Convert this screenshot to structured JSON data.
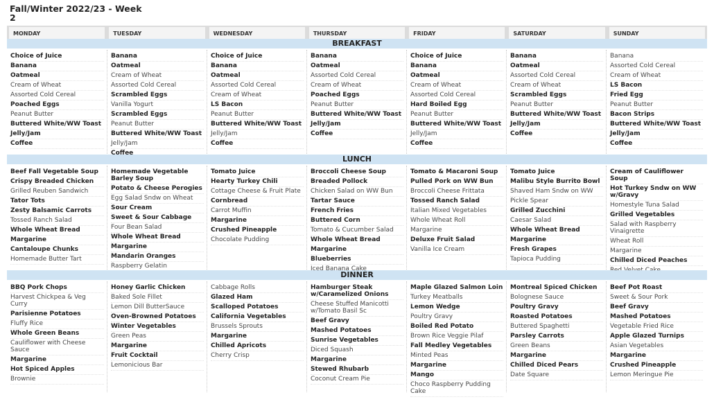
{
  "title": "Fall/Winter 2022/23 - Week 2",
  "days": [
    "MONDAY",
    "TUESDAY",
    "WEDNESDAY",
    "THURSDAY",
    "FRIDAY",
    "SATURDAY",
    "SUNDAY"
  ],
  "colors": {
    "band": "#cfe3f3",
    "header": "#dcdcdc"
  },
  "meals": [
    {
      "name": "BREAKFAST",
      "columns": [
        [
          {
            "t": "Choice of Juice",
            "b": 1
          },
          {
            "t": "Banana",
            "b": 1
          },
          {
            "t": "Oatmeal",
            "b": 1
          },
          {
            "t": "Cream of Wheat"
          },
          {
            "t": "Assorted Cold Cereal"
          },
          {
            "t": "Poached Eggs",
            "b": 1
          },
          {
            "t": "Peanut Butter"
          },
          {
            "t": "Buttered White/WW Toast",
            "b": 1
          },
          {
            "t": "Jelly/Jam",
            "b": 1
          },
          {
            "t": "Coffee",
            "b": 1
          }
        ],
        [
          {
            "t": "Banana",
            "b": 1
          },
          {
            "t": "Oatmeal",
            "b": 1
          },
          {
            "t": "Cream of Wheat"
          },
          {
            "t": "Assorted Cold Cereal"
          },
          {
            "t": "Scrambled Eggs",
            "b": 1
          },
          {
            "t": "Vanilla Yogurt"
          },
          {
            "t": "Scrambled Eggs",
            "b": 1
          },
          {
            "t": "Peanut Butter"
          },
          {
            "t": "Buttered White/WW Toast",
            "b": 1
          },
          {
            "t": "Jelly/Jam"
          },
          {
            "t": "Coffee",
            "b": 1
          }
        ],
        [
          {
            "t": "Choice of Juice",
            "b": 1
          },
          {
            "t": "Banana",
            "b": 1
          },
          {
            "t": "Oatmeal",
            "b": 1
          },
          {
            "t": "Assorted Cold Cereal"
          },
          {
            "t": "Cream of Wheat"
          },
          {
            "t": "LS Bacon",
            "b": 1
          },
          {
            "t": "Peanut Butter"
          },
          {
            "t": "Buttered White/WW Toast",
            "b": 1
          },
          {
            "t": "Jelly/Jam"
          },
          {
            "t": "Coffee",
            "b": 1
          }
        ],
        [
          {
            "t": "Banana",
            "b": 1
          },
          {
            "t": "Oatmeal",
            "b": 1
          },
          {
            "t": "Assorted Cold Cereal"
          },
          {
            "t": "Cream of Wheat"
          },
          {
            "t": "Poached Eggs",
            "b": 1
          },
          {
            "t": "Peanut Butter"
          },
          {
            "t": "Buttered White/WW Toast",
            "b": 1
          },
          {
            "t": "Jelly/Jam",
            "b": 1
          },
          {
            "t": "Coffee",
            "b": 1
          }
        ],
        [
          {
            "t": "Choice of Juice",
            "b": 1
          },
          {
            "t": "Banana",
            "b": 1
          },
          {
            "t": "Oatmeal",
            "b": 1
          },
          {
            "t": "Cream of Wheat"
          },
          {
            "t": "Assorted Cold Cereal"
          },
          {
            "t": "Hard Boiled Egg",
            "b": 1
          },
          {
            "t": "Peanut Butter"
          },
          {
            "t": "Buttered White/WW Toast",
            "b": 1
          },
          {
            "t": "Jelly/Jam"
          },
          {
            "t": "Coffee",
            "b": 1
          }
        ],
        [
          {
            "t": "Banana",
            "b": 1
          },
          {
            "t": "Oatmeal",
            "b": 1
          },
          {
            "t": "Assorted Cold Cereal"
          },
          {
            "t": "Cream of Wheat"
          },
          {
            "t": "Scrambled Eggs",
            "b": 1
          },
          {
            "t": "Peanut Butter"
          },
          {
            "t": "Buttered White/WW Toast",
            "b": 1
          },
          {
            "t": "Jelly/Jam",
            "b": 1
          },
          {
            "t": "Coffee",
            "b": 1
          }
        ],
        [
          {
            "t": "Banana"
          },
          {
            "t": "Assorted Cold Cereal"
          },
          {
            "t": "Cream of Wheat"
          },
          {
            "t": "LS Bacon",
            "b": 1
          },
          {
            "t": "Fried Egg",
            "b": 1
          },
          {
            "t": "Peanut Butter"
          },
          {
            "t": "Bacon Strips",
            "b": 1
          },
          {
            "t": "Buttered White/WW Toast",
            "b": 1
          },
          {
            "t": "Jelly/Jam",
            "b": 1
          },
          {
            "t": "Coffee",
            "b": 1
          }
        ]
      ]
    },
    {
      "name": "LUNCH",
      "columns": [
        [
          {
            "t": "Beef Fall Vegetable Soup",
            "b": 1
          },
          {
            "t": "Crispy Breaded Chicken",
            "b": 1
          },
          {
            "t": "Grilled Reuben Sandwich"
          },
          {
            "t": "Tator Tots",
            "b": 1
          },
          {
            "t": "Zesty Balsamic Carrots",
            "b": 1
          },
          {
            "t": "Tossed Ranch Salad"
          },
          {
            "t": "Whole Wheat Bread",
            "b": 1
          },
          {
            "t": "Margarine",
            "b": 1
          },
          {
            "t": "Cantaloupe Chunks",
            "b": 1
          },
          {
            "t": "Homemade Butter Tart"
          }
        ],
        [
          {
            "t": "Homemade Vegetable Barley Soup",
            "b": 1
          },
          {
            "t": "Potato & Cheese Perogies",
            "b": 1
          },
          {
            "t": "Egg Salad Sndw on Wheat"
          },
          {
            "t": "Sour Cream",
            "b": 1
          },
          {
            "t": "Sweet & Sour Cabbage",
            "b": 1
          },
          {
            "t": "Four Bean Salad"
          },
          {
            "t": "Whole Wheat Bread",
            "b": 1
          },
          {
            "t": "Margarine",
            "b": 1
          },
          {
            "t": "Mandarin Oranges",
            "b": 1
          },
          {
            "t": "Raspberry Gelatin"
          }
        ],
        [
          {
            "t": "Tomato Juice",
            "b": 1
          },
          {
            "t": "Hearty Turkey Chili",
            "b": 1
          },
          {
            "t": "Cottage Cheese & Fruit Plate"
          },
          {
            "t": "Cornbread",
            "b": 1
          },
          {
            "t": "Carrot Muffin"
          },
          {
            "t": "Margarine",
            "b": 1
          },
          {
            "t": "Crushed Pineapple",
            "b": 1
          },
          {
            "t": "Chocolate Pudding"
          }
        ],
        [
          {
            "t": "Broccoli Cheese Soup",
            "b": 1
          },
          {
            "t": "Breaded Pollock",
            "b": 1
          },
          {
            "t": "Chicken Salad on WW Bun"
          },
          {
            "t": "Tartar Sauce",
            "b": 1
          },
          {
            "t": "French Fries",
            "b": 1
          },
          {
            "t": "Buttered Corn",
            "b": 1
          },
          {
            "t": "Tomato & Cucumber Salad"
          },
          {
            "t": "Whole Wheat Bread",
            "b": 1
          },
          {
            "t": "Margarine",
            "b": 1
          },
          {
            "t": "Blueberries",
            "b": 1
          },
          {
            "t": "Iced Banana Cake"
          }
        ],
        [
          {
            "t": "Tomato & Macaroni Soup",
            "b": 1
          },
          {
            "t": "Pulled Pork on WW Bun",
            "b": 1
          },
          {
            "t": "Broccoli Cheese Frittata"
          },
          {
            "t": "Tossed Ranch Salad",
            "b": 1
          },
          {
            "t": "Italian Mixed Vegetables"
          },
          {
            "t": "Whole Wheat Roll"
          },
          {
            "t": "Margarine"
          },
          {
            "t": "Deluxe Fruit Salad",
            "b": 1
          },
          {
            "t": "Vanilla Ice Cream"
          }
        ],
        [
          {
            "t": "Tomato Juice",
            "b": 1
          },
          {
            "t": "Malibu Style Burrito Bowl",
            "b": 1
          },
          {
            "t": "Shaved Ham Sndw on WW"
          },
          {
            "t": "Pickle Spear"
          },
          {
            "t": "Grilled Zucchini",
            "b": 1
          },
          {
            "t": "Caesar Salad"
          },
          {
            "t": "Whole Wheat Bread",
            "b": 1
          },
          {
            "t": "Margarine",
            "b": 1
          },
          {
            "t": "Fresh Grapes",
            "b": 1
          },
          {
            "t": "Tapioca Pudding"
          }
        ],
        [
          {
            "t": "Cream of Cauliflower Soup",
            "b": 1
          },
          {
            "t": "Hot Turkey Sndw on WW w/Gravy",
            "b": 1
          },
          {
            "t": "Homestyle Tuna Salad"
          },
          {
            "t": "Grilled Vegetables",
            "b": 1
          },
          {
            "t": "Salad with Raspberry Vinaigrette"
          },
          {
            "t": "Wheat Roll"
          },
          {
            "t": "Margarine"
          },
          {
            "t": "Chilled Diced Peaches",
            "b": 1
          },
          {
            "t": "Red Velvet Cake"
          }
        ]
      ]
    },
    {
      "name": "DINNER",
      "columns": [
        [
          {
            "t": "BBQ Pork Chops",
            "b": 1
          },
          {
            "t": "Harvest Chickpea & Veg Curry"
          },
          {
            "t": "Parisienne Potatoes",
            "b": 1
          },
          {
            "t": "Fluffy Rice"
          },
          {
            "t": "Whole Green Beans",
            "b": 1
          },
          {
            "t": "Cauliflower with Cheese Sauce"
          },
          {
            "t": "Margarine",
            "b": 1
          },
          {
            "t": "Hot Spiced Apples",
            "b": 1
          },
          {
            "t": "Brownie"
          }
        ],
        [
          {
            "t": "Honey Garlic Chicken",
            "b": 1
          },
          {
            "t": "Baked Sole Fillet"
          },
          {
            "t": "Lemon Dill ButterSauce"
          },
          {
            "t": "Oven-Browned Potatoes",
            "b": 1
          },
          {
            "t": "Winter Vegetables",
            "b": 1
          },
          {
            "t": "Green Peas"
          },
          {
            "t": "Margarine",
            "b": 1
          },
          {
            "t": "Fruit Cocktail",
            "b": 1
          },
          {
            "t": "Lemonicious Bar"
          }
        ],
        [
          {
            "t": "Cabbage Rolls"
          },
          {
            "t": "Glazed Ham",
            "b": 1
          },
          {
            "t": "Scalloped Potatoes",
            "b": 1
          },
          {
            "t": "California Vegetables",
            "b": 1
          },
          {
            "t": "Brussels Sprouts"
          },
          {
            "t": "Margarine",
            "b": 1
          },
          {
            "t": "Chilled Apricots",
            "b": 1
          },
          {
            "t": "Cherry Crisp"
          }
        ],
        [
          {
            "t": "Hamburger Steak w/Caramelized Onions",
            "b": 1
          },
          {
            "t": "Cheese Stuffed Manicotti w/Tomato Basil Sc"
          },
          {
            "t": "Beef Gravy",
            "b": 1
          },
          {
            "t": "Mashed Potatoes",
            "b": 1
          },
          {
            "t": "Sunrise Vegetables",
            "b": 1
          },
          {
            "t": "Diced Squash"
          },
          {
            "t": "Margarine",
            "b": 1
          },
          {
            "t": "Stewed Rhubarb",
            "b": 1
          },
          {
            "t": "Coconut Cream Pie"
          }
        ],
        [
          {
            "t": "Maple Glazed Salmon Loin",
            "b": 1
          },
          {
            "t": "Turkey Meatballs"
          },
          {
            "t": "Lemon Wedge",
            "b": 1
          },
          {
            "t": "Poultry Gravy"
          },
          {
            "t": "Boiled Red Potato",
            "b": 1
          },
          {
            "t": "Brown Rice Veggie Pilaf"
          },
          {
            "t": "Fall Medley Vegetables",
            "b": 1
          },
          {
            "t": "Minted Peas"
          },
          {
            "t": "Margarine",
            "b": 1
          },
          {
            "t": "Mango",
            "b": 1
          },
          {
            "t": "Choco Raspberry Pudding Cake"
          }
        ],
        [
          {
            "t": "Montreal Spiced Chicken",
            "b": 1
          },
          {
            "t": "Bolognese Sauce"
          },
          {
            "t": "Poultry Gravy",
            "b": 1
          },
          {
            "t": "Roasted Potatoes",
            "b": 1
          },
          {
            "t": "Buttered Spaghetti"
          },
          {
            "t": "Parsley Carrots",
            "b": 1
          },
          {
            "t": "Green Beans"
          },
          {
            "t": "Margarine",
            "b": 1
          },
          {
            "t": "Chilled Diced Pears",
            "b": 1
          },
          {
            "t": "Date Square"
          }
        ],
        [
          {
            "t": "Beef Pot Roast",
            "b": 1
          },
          {
            "t": "Sweet & Sour Pork"
          },
          {
            "t": "Beef Gravy",
            "b": 1
          },
          {
            "t": "Mashed Potatoes",
            "b": 1
          },
          {
            "t": "Vegetable Fried Rice"
          },
          {
            "t": "Apple Glazed Turnips",
            "b": 1
          },
          {
            "t": "Asian Vegetables"
          },
          {
            "t": "Margarine",
            "b": 1
          },
          {
            "t": "Crushed Pineapple",
            "b": 1
          },
          {
            "t": "Lemon Meringue Pie"
          }
        ]
      ]
    }
  ]
}
